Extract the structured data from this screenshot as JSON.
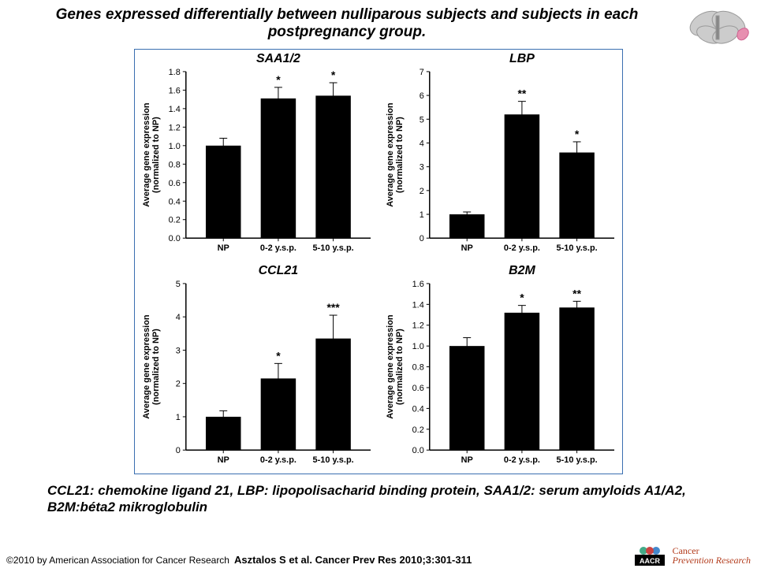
{
  "header_title": "Genes expressed differentially between nulliparous subjects and subjects in each postpregnancy group.",
  "caption": "CCL21: chemokine ligand 21, LBP: lipopolisacharid binding protein, SAA1/2: serum amyloids A1/A2, B2M:béta2 mikroglobulin",
  "footer_copyright": "©2010 by American Association for Cancer Research",
  "footer_citation": "Asztalos S et al. Cancer Prev Res 2010;3:301-311",
  "brand_main": "Cancer",
  "brand_sub": "Prevention\nResearch",
  "aacr_label": "AACR",
  "panels": [
    {
      "title": "SAA1/2",
      "ylabel_top": "Average gene expression",
      "ylabel_bottom": "(normalized to NP)",
      "ylim_max": 1.8,
      "ytick_step": 0.2,
      "ytick_decimals": 1,
      "bar_color": "#000000",
      "categories": [
        "NP",
        "0-2 y.s.p.",
        "5-10 y.s.p."
      ],
      "values": [
        1.0,
        1.51,
        1.54
      ],
      "err": [
        0.08,
        0.12,
        0.14
      ],
      "sig": [
        "",
        "*",
        "*"
      ]
    },
    {
      "title": "LBP",
      "ylabel_top": "Average gene expression",
      "ylabel_bottom": "(normalized to NP)",
      "ylim_max": 7,
      "ytick_step": 1,
      "ytick_decimals": 0,
      "bar_color": "#000000",
      "categories": [
        "NP",
        "0-2 y.s.p.",
        "5-10 y.s.p."
      ],
      "values": [
        1.0,
        5.2,
        3.6
      ],
      "err": [
        0.1,
        0.55,
        0.45
      ],
      "sig": [
        "",
        "**",
        "*"
      ]
    },
    {
      "title": "CCL21",
      "ylabel_top": "Average gene expression",
      "ylabel_bottom": "(normalized to NP)",
      "ylim_max": 5,
      "ytick_step": 1,
      "ytick_decimals": 0,
      "bar_color": "#000000",
      "categories": [
        "NP",
        "0-2 y.s.p.",
        "5-10 y.s.p."
      ],
      "values": [
        1.0,
        2.15,
        3.35
      ],
      "err": [
        0.18,
        0.45,
        0.7
      ],
      "sig": [
        "",
        "*",
        "***"
      ]
    },
    {
      "title": "B2M",
      "ylabel_top": "Average gene expression",
      "ylabel_bottom": "(normalized to NP)",
      "ylim_max": 1.6,
      "ytick_step": 0.2,
      "ytick_decimals": 1,
      "bar_color": "#000000",
      "categories": [
        "NP",
        "0-2 y.s.p.",
        "5-10 y.s.p."
      ],
      "values": [
        1.0,
        1.32,
        1.37
      ],
      "err": [
        0.08,
        0.07,
        0.06
      ],
      "sig": [
        "",
        "*",
        "**"
      ]
    }
  ]
}
